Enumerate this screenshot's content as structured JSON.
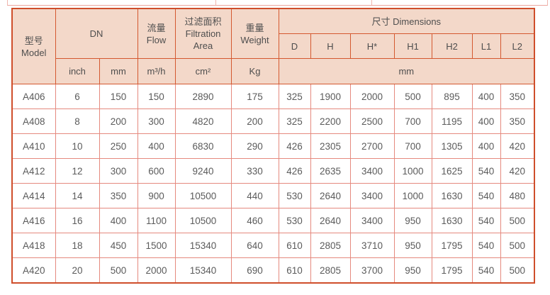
{
  "colors": {
    "header_bg": "#f3d8c9",
    "header_border": "#d4582f",
    "outer_border": "#cf4e2b",
    "data_border": "#e5897e",
    "header_text": "#4e4e4e",
    "data_text": "#5b5b5b",
    "fragment_border": "#f0b6ae"
  },
  "table": {
    "header": {
      "model": {
        "zh": "型号",
        "en": "Model"
      },
      "dn": {
        "label": "DN",
        "units": [
          "inch",
          "mm"
        ]
      },
      "flow": {
        "zh": "流量",
        "en": "Flow",
        "unit": "m³/h"
      },
      "filtration_area": {
        "zh": "过滤面积",
        "en": "Filtration Area",
        "unit": "cm²"
      },
      "weight": {
        "zh": "重量",
        "en": "Weight",
        "unit": "Kg"
      },
      "dimensions": {
        "zh": "尺寸",
        "en": "Dimensions",
        "unit": "mm",
        "sub": [
          "D",
          "H",
          "H*",
          "H1",
          "H2",
          "L1",
          "L2"
        ]
      }
    },
    "rows": [
      {
        "model": "A406",
        "dn_inch": "6",
        "dn_mm": "150",
        "flow": "150",
        "area": "2890",
        "weight": "175",
        "dims": [
          "325",
          "1900",
          "2000",
          "500",
          "895",
          "400",
          "350"
        ]
      },
      {
        "model": "A408",
        "dn_inch": "8",
        "dn_mm": "200",
        "flow": "300",
        "area": "4820",
        "weight": "200",
        "dims": [
          "325",
          "2200",
          "2500",
          "700",
          "1195",
          "400",
          "350"
        ]
      },
      {
        "model": "A410",
        "dn_inch": "10",
        "dn_mm": "250",
        "flow": "400",
        "area": "6830",
        "weight": "290",
        "dims": [
          "426",
          "2305",
          "2700",
          "700",
          "1305",
          "400",
          "420"
        ]
      },
      {
        "model": "A412",
        "dn_inch": "12",
        "dn_mm": "300",
        "flow": "600",
        "area": "9240",
        "weight": "330",
        "dims": [
          "426",
          "2635",
          "3400",
          "1000",
          "1625",
          "540",
          "420"
        ]
      },
      {
        "model": "A414",
        "dn_inch": "14",
        "dn_mm": "350",
        "flow": "900",
        "area": "10500",
        "weight": "440",
        "dims": [
          "530",
          "2640",
          "3400",
          "1000",
          "1630",
          "540",
          "480"
        ]
      },
      {
        "model": "A416",
        "dn_inch": "16",
        "dn_mm": "400",
        "flow": "1100",
        "area": "10500",
        "weight": "460",
        "dims": [
          "530",
          "2640",
          "3400",
          "950",
          "1630",
          "540",
          "500"
        ]
      },
      {
        "model": "A418",
        "dn_inch": "18",
        "dn_mm": "450",
        "flow": "1500",
        "area": "15340",
        "weight": "640",
        "dims": [
          "610",
          "2805",
          "3710",
          "950",
          "1795",
          "540",
          "500"
        ]
      },
      {
        "model": "A420",
        "dn_inch": "20",
        "dn_mm": "500",
        "flow": "2000",
        "area": "15340",
        "weight": "690",
        "dims": [
          "610",
          "2805",
          "3700",
          "950",
          "1795",
          "540",
          "500"
        ]
      }
    ]
  }
}
